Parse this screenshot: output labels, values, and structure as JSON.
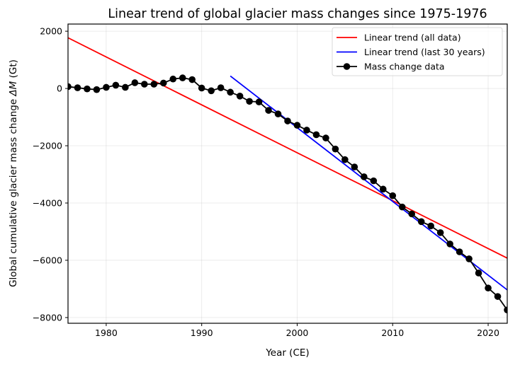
{
  "chart_data": {
    "type": "line",
    "title": "Linear trend of global glacier mass changes since 1975-1976",
    "xlabel": "Year (CE)",
    "ylabel_prefix": "Global cumulative glacier mass change ",
    "ylabel_symbol": "ΔM",
    "ylabel_suffix": " (Gt)",
    "xlim": [
      1976,
      2022
    ],
    "ylim": [
      -8200,
      2250
    ],
    "xticks": [
      1980,
      1990,
      2000,
      2010,
      2020
    ],
    "xtick_labels": [
      "1980",
      "1990",
      "2000",
      "2010",
      "2020"
    ],
    "yticks": [
      2000,
      0,
      -2000,
      -4000,
      -6000,
      -8000
    ],
    "ytick_labels": [
      "2000",
      "0",
      "−2000",
      "−4000",
      "−6000",
      "−8000"
    ],
    "grid": true,
    "legend_position": "top-right",
    "series": [
      {
        "name": "Linear trend (all data)",
        "color": "#ff0000",
        "marker": "none",
        "x": [
          1976,
          2022
        ],
        "y": [
          1770,
          -5925
        ]
      },
      {
        "name": "Linear trend (last 30 years)",
        "color": "#0000ff",
        "marker": "none",
        "x": [
          1993,
          2022
        ],
        "y": [
          435,
          -7035
        ]
      },
      {
        "name": "Mass change data",
        "color": "#000000",
        "marker": "circle",
        "x": [
          1976,
          1977,
          1978,
          1979,
          1980,
          1981,
          1982,
          1983,
          1984,
          1985,
          1986,
          1987,
          1988,
          1989,
          1990,
          1991,
          1992,
          1993,
          1994,
          1995,
          1996,
          1997,
          1998,
          1999,
          2000,
          2001,
          2002,
          2003,
          2004,
          2005,
          2006,
          2007,
          2008,
          2009,
          2010,
          2011,
          2012,
          2013,
          2014,
          2015,
          2016,
          2017,
          2018,
          2019,
          2020,
          2021,
          2022
        ],
        "y": [
          65,
          25,
          -15,
          -40,
          40,
          115,
          40,
          200,
          150,
          150,
          190,
          330,
          370,
          310,
          15,
          -80,
          25,
          -130,
          -265,
          -450,
          -470,
          -765,
          -890,
          -1135,
          -1285,
          -1455,
          -1615,
          -1730,
          -2115,
          -2485,
          -2740,
          -3085,
          -3225,
          -3515,
          -3745,
          -4140,
          -4380,
          -4650,
          -4800,
          -5035,
          -5430,
          -5705,
          -5950,
          -6445,
          -6970,
          -7265,
          -7735
        ]
      }
    ]
  }
}
